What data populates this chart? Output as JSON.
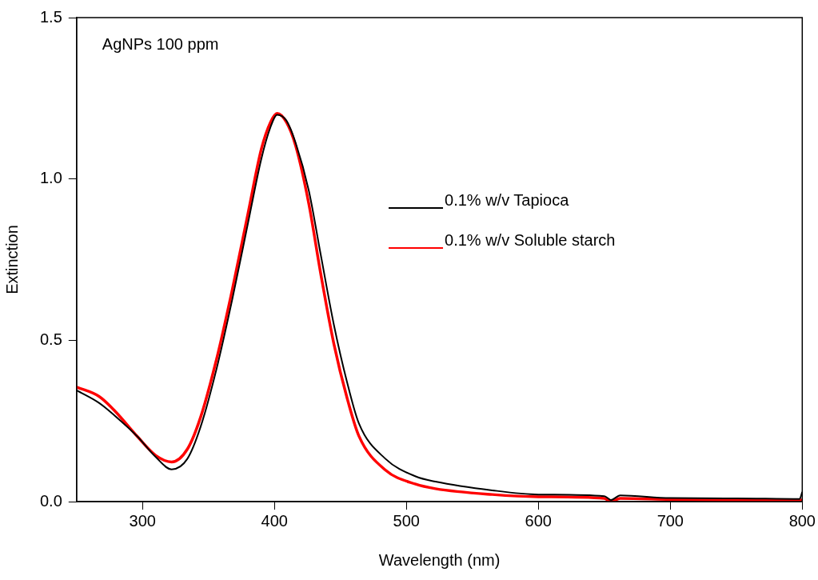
{
  "chart_data": {
    "type": "line",
    "xlabel": "Wavelength (nm)",
    "ylabel": "Extinction",
    "annotations": [
      "AgNPs 100 ppm"
    ],
    "xlim": [
      250,
      800
    ],
    "xticks": [
      300,
      400,
      500,
      600,
      700,
      800
    ],
    "ylim": [
      0,
      1.5
    ],
    "yticks": [
      {
        "value": 0,
        "label": "0.0"
      },
      {
        "value": 0.5,
        "label": "0.5"
      },
      {
        "value": 1,
        "label": "1.0"
      },
      {
        "value": 1.5,
        "label": "1.5"
      }
    ],
    "grid": false,
    "legend": "right",
    "marker": "none",
    "line_style": "solid",
    "series": [
      {
        "name": "0.1% w/v Tapioca",
        "color": "#000000",
        "x": [
          250,
          267,
          279,
          296,
          310,
          322,
          334,
          344,
          356,
          368,
          380,
          390,
          397,
          402,
          409,
          416,
          426,
          435,
          445,
          455,
          464,
          484,
          507,
          522,
          565,
          600,
          650,
          655,
          662,
          700,
          750,
          798,
          800
        ],
        "values": [
          0.345,
          0.306,
          0.266,
          0.202,
          0.138,
          0.1,
          0.133,
          0.232,
          0.41,
          0.627,
          0.865,
          1.062,
          1.161,
          1.199,
          1.181,
          1.112,
          0.964,
          0.766,
          0.548,
          0.37,
          0.242,
          0.133,
          0.078,
          0.062,
          0.035,
          0.022,
          0.017,
          0.005,
          0.019,
          0.011,
          0.01,
          0.008,
          0.03
        ]
      },
      {
        "name": "0.1% w/v Soluble starch",
        "color": "#ff0000",
        "x": [
          250,
          267,
          279,
          296,
          310,
          322,
          334,
          344,
          356,
          368,
          380,
          390,
          397,
          402,
          409,
          416,
          426,
          435,
          445,
          455,
          464,
          484,
          507,
          522,
          565,
          600,
          650,
          655,
          662,
          700,
          750,
          800
        ],
        "values": [
          0.355,
          0.326,
          0.281,
          0.202,
          0.143,
          0.123,
          0.163,
          0.262,
          0.44,
          0.657,
          0.895,
          1.092,
          1.176,
          1.203,
          1.176,
          1.103,
          0.923,
          0.707,
          0.489,
          0.321,
          0.203,
          0.098,
          0.054,
          0.04,
          0.022,
          0.015,
          0.01,
          0.0,
          0.01,
          0.007,
          0.004,
          0.005
        ]
      }
    ]
  }
}
